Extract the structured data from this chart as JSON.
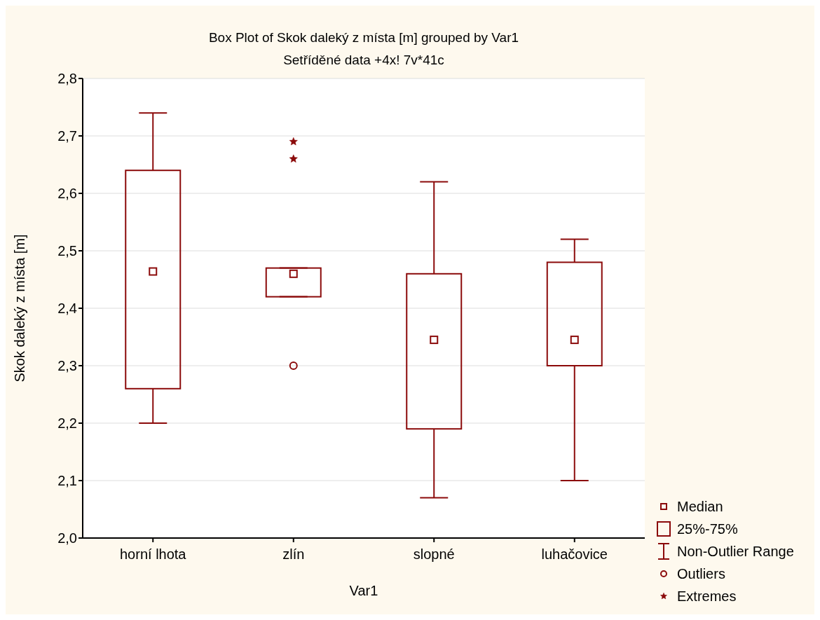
{
  "chart_data": {
    "type": "box",
    "title": "Box Plot of Skok daleký z místa [m] grouped by  Var1",
    "subtitle": "Setříděné data +4x! 7v*41c",
    "xlabel": "Var1",
    "ylabel": "Skok daleký z místa [m]",
    "categories": [
      "horní lhota",
      "zlín",
      "slopné",
      "luhačovice"
    ],
    "series": [
      {
        "color": "#8b0a0a",
        "boxes": [
          {
            "low": 2.2,
            "q1": 2.26,
            "median": 2.464,
            "q3": 2.64,
            "high": 2.74
          },
          {
            "low": 2.42,
            "q1": 2.42,
            "median": 2.46,
            "q3": 2.47,
            "high": 2.47,
            "outliers": [
              2.3
            ]
          },
          {
            "low": 2.07,
            "q1": 2.19,
            "median": 2.345,
            "q3": 2.46,
            "high": 2.62
          },
          {
            "low": 2.1,
            "q1": 2.3,
            "median": 2.345,
            "q3": 2.48,
            "high": 2.52
          }
        ]
      },
      {
        "name": "Extremes",
        "type": "scatter",
        "marker": "star",
        "color": "#8b0a0a",
        "x": [
          "zlín",
          "zlín"
        ],
        "values": [
          2.69,
          2.66
        ]
      }
    ],
    "annotations": [
      "Median",
      "25%-75%",
      "Non-Outlier Range",
      "Outliers"
    ],
    "ylim": [
      2.0,
      2.8
    ],
    "yticks": [
      {
        "value": 2.0,
        "label": "2,0"
      },
      {
        "value": 2.1,
        "label": "2,1"
      },
      {
        "value": 2.2,
        "label": "2,2"
      },
      {
        "value": 2.3,
        "label": "2,3"
      },
      {
        "value": 2.4,
        "label": "2,4"
      },
      {
        "value": 2.5,
        "label": "2,5"
      },
      {
        "value": 2.6,
        "label": "2,6"
      },
      {
        "value": 2.7,
        "label": "2,7"
      },
      {
        "value": 2.8,
        "label": "2,8"
      }
    ],
    "grid": "y",
    "legend": "bottom right"
  }
}
